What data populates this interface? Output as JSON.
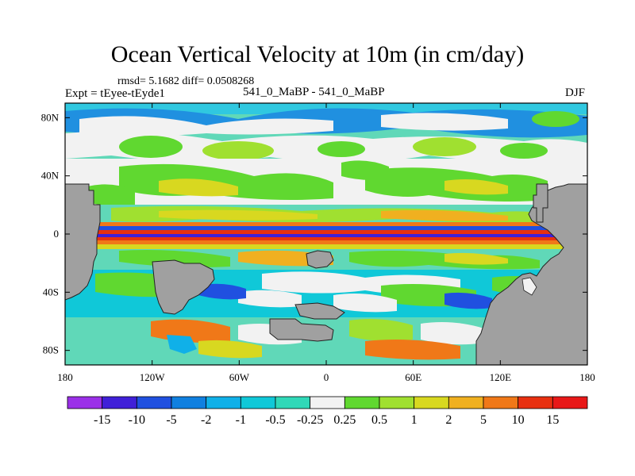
{
  "chart_data": {
    "type": "heatmap",
    "title": "Ocean Vertical Velocity at 10m (in cm/day)",
    "stats_text": "rmsd= 5.1682 diff= 0.0508268",
    "experiment_label": "Expt = tEyee-tEyde1",
    "comparison_label": "541_0_MaBP - 541_0_MaBP",
    "season": "DJF",
    "xlim": [
      -180,
      180
    ],
    "ylim": [
      -90,
      90
    ],
    "x_ticks": [
      {
        "value": -180,
        "label": "180"
      },
      {
        "value": -120,
        "label": "120W"
      },
      {
        "value": -60,
        "label": "60W"
      },
      {
        "value": 0,
        "label": "0"
      },
      {
        "value": 60,
        "label": "60E"
      },
      {
        "value": 120,
        "label": "120E"
      },
      {
        "value": 180,
        "label": "180"
      }
    ],
    "y_ticks": [
      {
        "value": 80,
        "label": "80N"
      },
      {
        "value": 40,
        "label": "40N"
      },
      {
        "value": 0,
        "label": "0"
      },
      {
        "value": -40,
        "label": "40S"
      },
      {
        "value": -80,
        "label": "80S"
      }
    ],
    "colorbar": {
      "levels": [
        "-15",
        "-10",
        "-5",
        "-2",
        "-1",
        "-0.5",
        "-0.25",
        "0.25",
        "0.5",
        "1",
        "2",
        "5",
        "10",
        "15"
      ],
      "colors": [
        "#9b30e8",
        "#4020d8",
        "#2050e0",
        "#1080e0",
        "#10b0e8",
        "#10c8d8",
        "#30d8b8",
        "#f2f2f2",
        "#60d830",
        "#a0e030",
        "#d8d820",
        "#f0b020",
        "#f07818",
        "#e83010",
        "#e81818"
      ]
    },
    "land_color": "#a0a0a0",
    "equatorial_band": {
      "lat_range": [
        -10,
        10
      ],
      "pattern": "alternating upwelling/downwelling stripes"
    }
  }
}
